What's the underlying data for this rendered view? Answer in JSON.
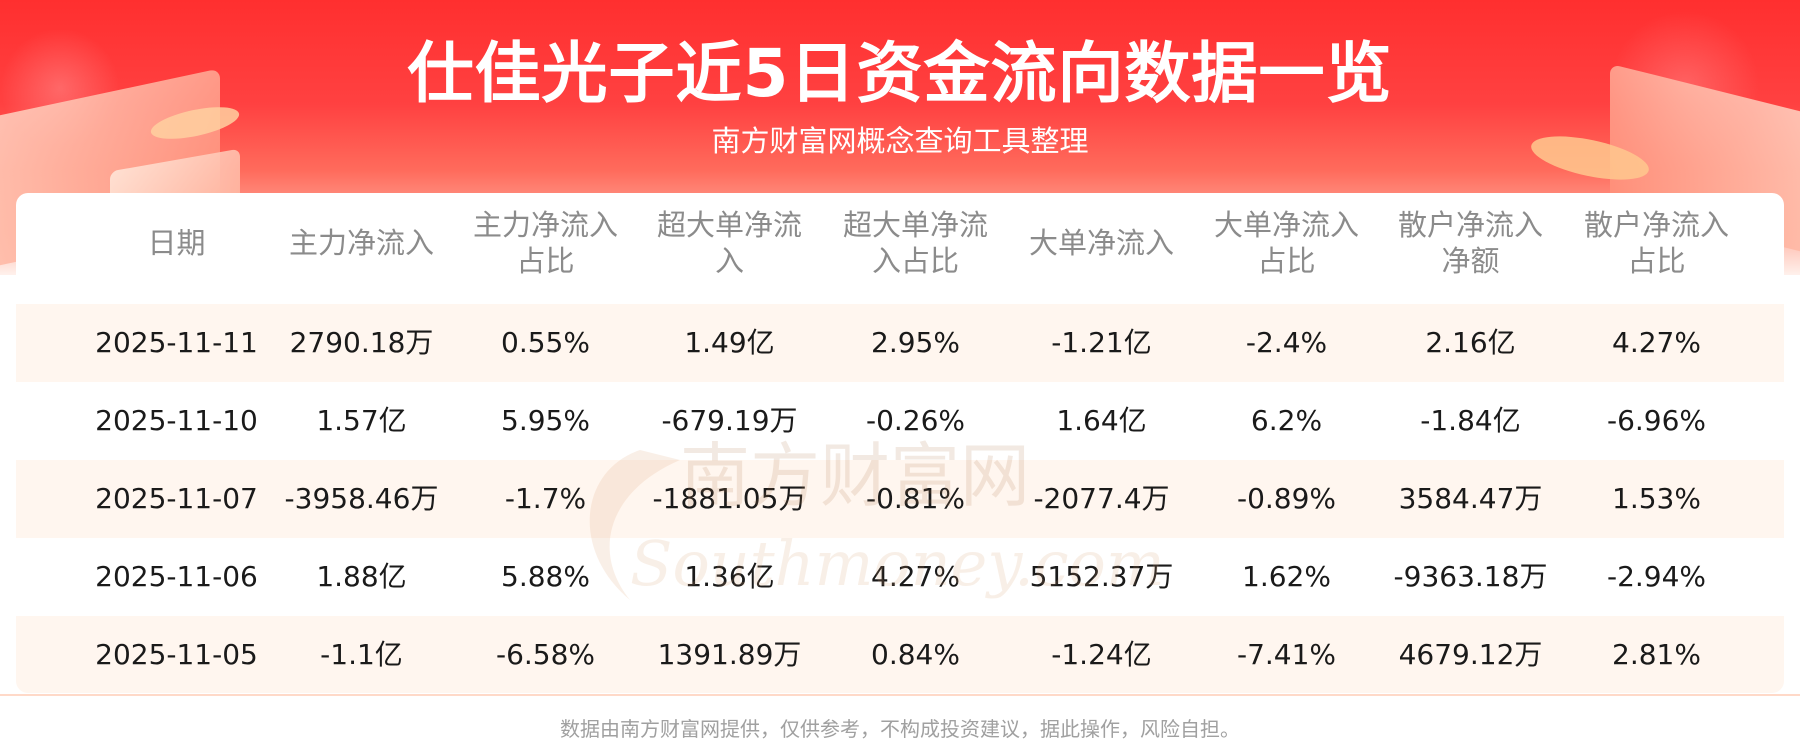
{
  "title": "仕佳光子近5日资金流向数据一览",
  "subtitle": "南方财富网概念查询工具整理",
  "table": {
    "headers": [
      [
        "日期"
      ],
      [
        "主力净流入"
      ],
      [
        "主力净流入",
        "占比"
      ],
      [
        "超大单净流",
        "入"
      ],
      [
        "超大单净流",
        "入占比"
      ],
      [
        "大单净流入"
      ],
      [
        "大单净流入",
        "占比"
      ],
      [
        "散户净流入",
        "净额"
      ],
      [
        "散户净流入",
        "占比"
      ]
    ],
    "rows": [
      [
        "2025-11-11",
        "2790.18万",
        "0.55%",
        "1.49亿",
        "2.95%",
        "-1.21亿",
        "-2.4%",
        "2.16亿",
        "4.27%"
      ],
      [
        "2025-11-10",
        "1.57亿",
        "5.95%",
        "-679.19万",
        "-0.26%",
        "1.64亿",
        "6.2%",
        "-1.84亿",
        "-6.96%"
      ],
      [
        "2025-11-07",
        "-3958.46万",
        "-1.7%",
        "-1881.05万",
        "-0.81%",
        "-2077.4万",
        "-0.89%",
        "3584.47万",
        "1.53%"
      ],
      [
        "2025-11-06",
        "1.88亿",
        "5.88%",
        "1.36亿",
        "4.27%",
        "5152.37万",
        "1.62%",
        "-9363.18万",
        "-2.94%"
      ],
      [
        "2025-11-05",
        "-1.1亿",
        "-6.58%",
        "1391.89万",
        "0.84%",
        "-1.24亿",
        "-7.41%",
        "4679.12万",
        "2.81%"
      ]
    ]
  },
  "watermark": {
    "text_cn": "南方财富网",
    "text_en": "Southmoney.com"
  },
  "footer": "数据由南方财富网提供，仅供参考，不构成投资建议，据此操作，风险自担。",
  "colors": {
    "banner_red": "#ff2f2f",
    "row_alt": "#fff6ef",
    "header_text": "#8b8b8b",
    "cell_text": "#1a1a1a"
  }
}
